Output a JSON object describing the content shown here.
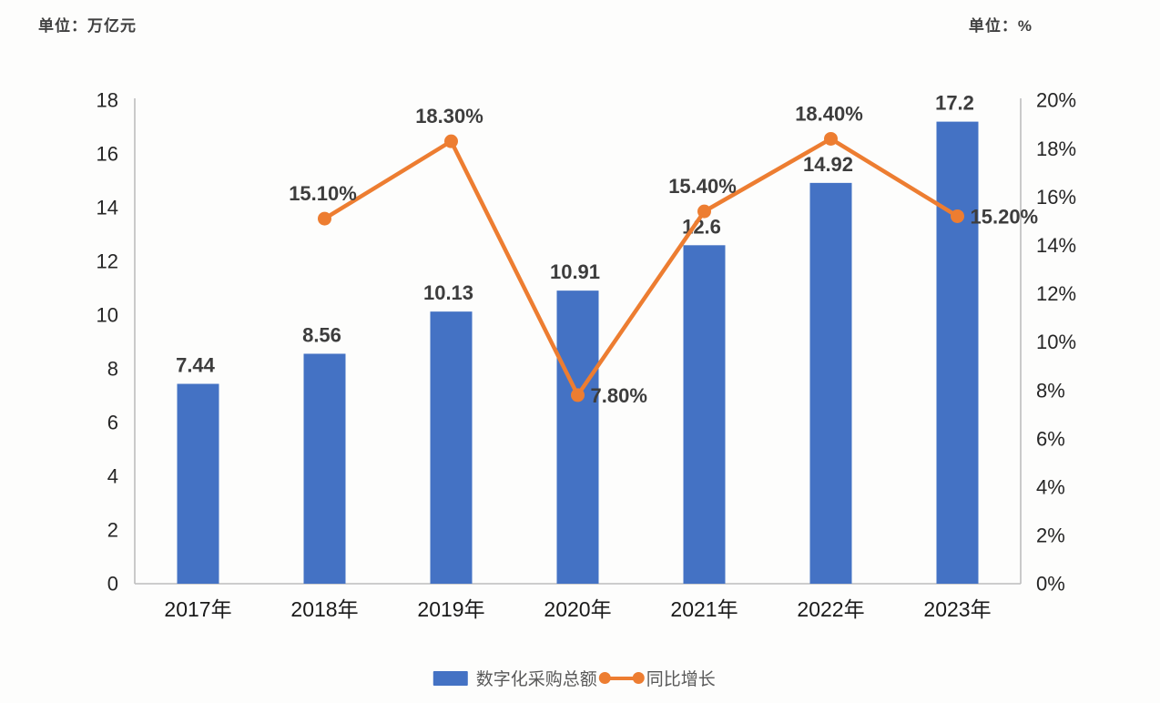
{
  "chart_data": {
    "type": "combo-bar-line",
    "left_unit_label": "单位：万亿元",
    "right_unit_label": "单位：%",
    "categories": [
      "2017年",
      "2018年",
      "2019年",
      "2020年",
      "2021年",
      "2022年",
      "2023年"
    ],
    "series": [
      {
        "name": "数字化采购总额",
        "type": "bar",
        "axis": "left",
        "color": "#4472C4",
        "values": [
          7.44,
          8.56,
          10.13,
          10.91,
          12.6,
          14.92,
          17.2
        ],
        "labels": [
          "7.44",
          "8.56",
          "10.13",
          "10.91",
          "12.6",
          "14.92",
          "17.2"
        ]
      },
      {
        "name": "同比增长",
        "type": "line",
        "axis": "right",
        "color": "#ED7D31",
        "values": [
          null,
          15.1,
          18.3,
          7.8,
          15.4,
          18.4,
          15.2
        ],
        "labels": [
          "",
          "15.10%",
          "18.30%",
          "7.80%",
          "15.40%",
          "18.40%",
          "15.20%"
        ],
        "label_positions": [
          "",
          "above",
          "above",
          "right",
          "above",
          "above",
          "right"
        ]
      }
    ],
    "left_axis": {
      "min": 0,
      "max": 18,
      "tick_labels": [
        "0",
        "2",
        "4",
        "6",
        "8",
        "10",
        "12",
        "14",
        "16",
        "18"
      ]
    },
    "right_axis": {
      "min": 0,
      "max": 20,
      "tick_labels": [
        "0%",
        "2%",
        "4%",
        "6%",
        "8%",
        "10%",
        "12%",
        "14%",
        "16%",
        "18%",
        "20%"
      ]
    },
    "grid": false,
    "legend_position": "bottom-center",
    "data_label_color": "#3d3d3d",
    "tick_label_color": "#262626",
    "axis_line_color": "#bdbdbd"
  }
}
